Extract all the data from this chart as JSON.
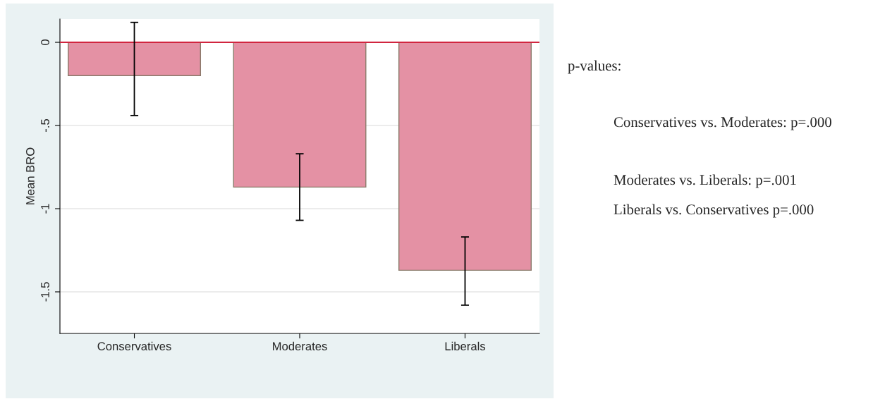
{
  "chart_data": {
    "type": "bar",
    "categories": [
      "Conservatives",
      "Moderates",
      "Liberals"
    ],
    "values": [
      -0.2,
      -0.87,
      -1.37
    ],
    "errors": [
      [
        -0.44,
        0.12
      ],
      [
        -1.07,
        -0.67
      ],
      [
        -1.58,
        -1.17
      ]
    ],
    "color": "#e491a4",
    "ylabel": "Mean BRO",
    "ylim": [
      -1.75,
      0.14
    ],
    "yticks": [
      0,
      {
        "value": -0.5,
        "label": "-.5"
      },
      {
        "value": -1,
        "label": "-1"
      },
      {
        "value": -1.5,
        "label": "-1.5"
      }
    ],
    "grid": "y",
    "ref_lines": [
      {
        "axis": "y",
        "value": 0,
        "color": "#d1253f"
      }
    ],
    "annotations": [
      "p-values:",
      "Conservatives vs. Moderates: p=.000",
      "Moderates vs. Liberals: p=.001",
      "Liberals vs. Conservatives p=.000"
    ]
  }
}
